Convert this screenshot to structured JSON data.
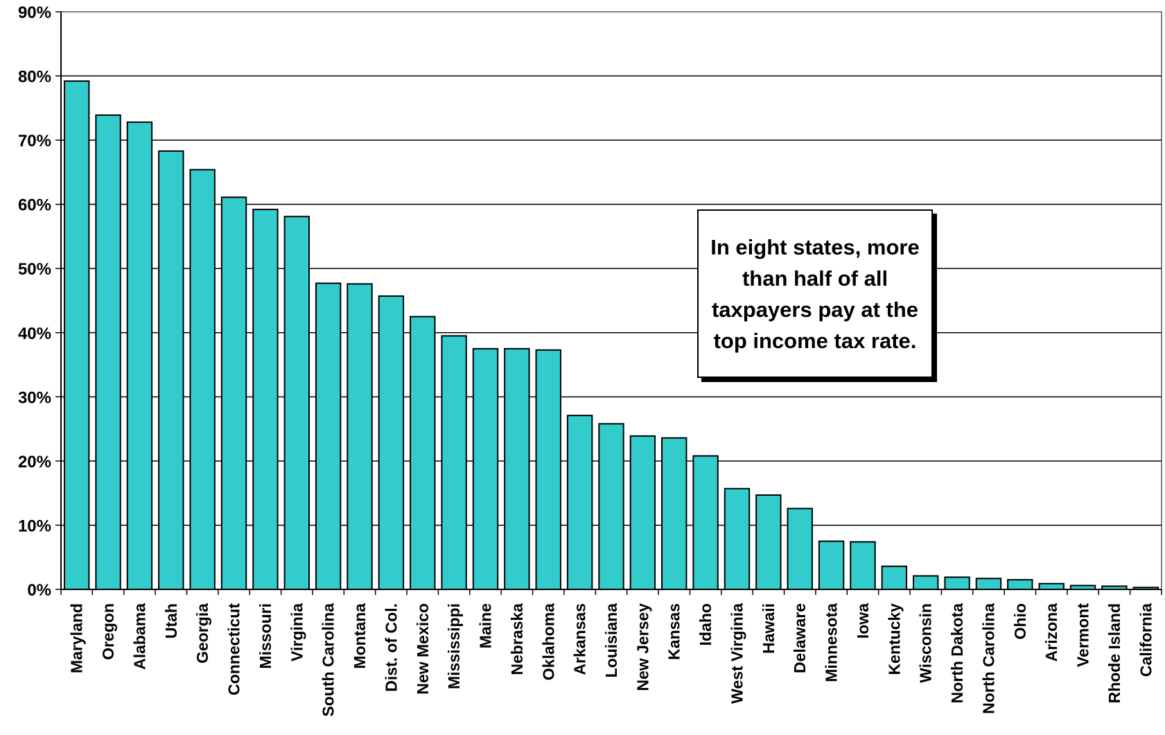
{
  "chart_data": {
    "type": "bar",
    "categories": [
      "Maryland",
      "Oregon",
      "Alabama",
      "Utah",
      "Georgia",
      "Connecticut",
      "Missouri",
      "Virginia",
      "South Carolina",
      "Montana",
      "Dist. of Col.",
      "New Mexico",
      "Mississippi",
      "Maine",
      "Nebraska",
      "Oklahoma",
      "Arkansas",
      "Louisiana",
      "New Jersey",
      "Kansas",
      "Idaho",
      "West Virginia",
      "Hawaii",
      "Delaware",
      "Minnesota",
      "Iowa",
      "Kentucky",
      "Wisconsin",
      "North Dakota",
      "North Carolina",
      "Ohio",
      "Arizona",
      "Vermont",
      "Rhode Island",
      "California"
    ],
    "values": [
      79.2,
      73.9,
      72.8,
      68.3,
      65.4,
      61.1,
      59.2,
      58.1,
      47.7,
      47.6,
      45.7,
      42.5,
      39.5,
      37.5,
      37.5,
      37.3,
      27.1,
      25.8,
      23.9,
      23.6,
      20.8,
      15.7,
      14.7,
      12.6,
      7.5,
      7.4,
      3.6,
      2.1,
      1.9,
      1.7,
      1.5,
      0.9,
      0.6,
      0.5,
      0.3
    ],
    "ylim": [
      0,
      90
    ],
    "yticks": [
      0,
      10,
      20,
      30,
      40,
      50,
      60,
      70,
      80,
      90
    ],
    "ytick_labels": [
      "0%",
      "10%",
      "20%",
      "30%",
      "40%",
      "50%",
      "60%",
      "70%",
      "80%",
      "90%"
    ],
    "grid": true,
    "colors": {
      "bar": "#33CCCC",
      "bar_edge": "#000000",
      "grid": "#000000",
      "axis": "#808080"
    },
    "annotation": "In eight states, more than half of all taxpayers pay at the top income tax rate."
  }
}
